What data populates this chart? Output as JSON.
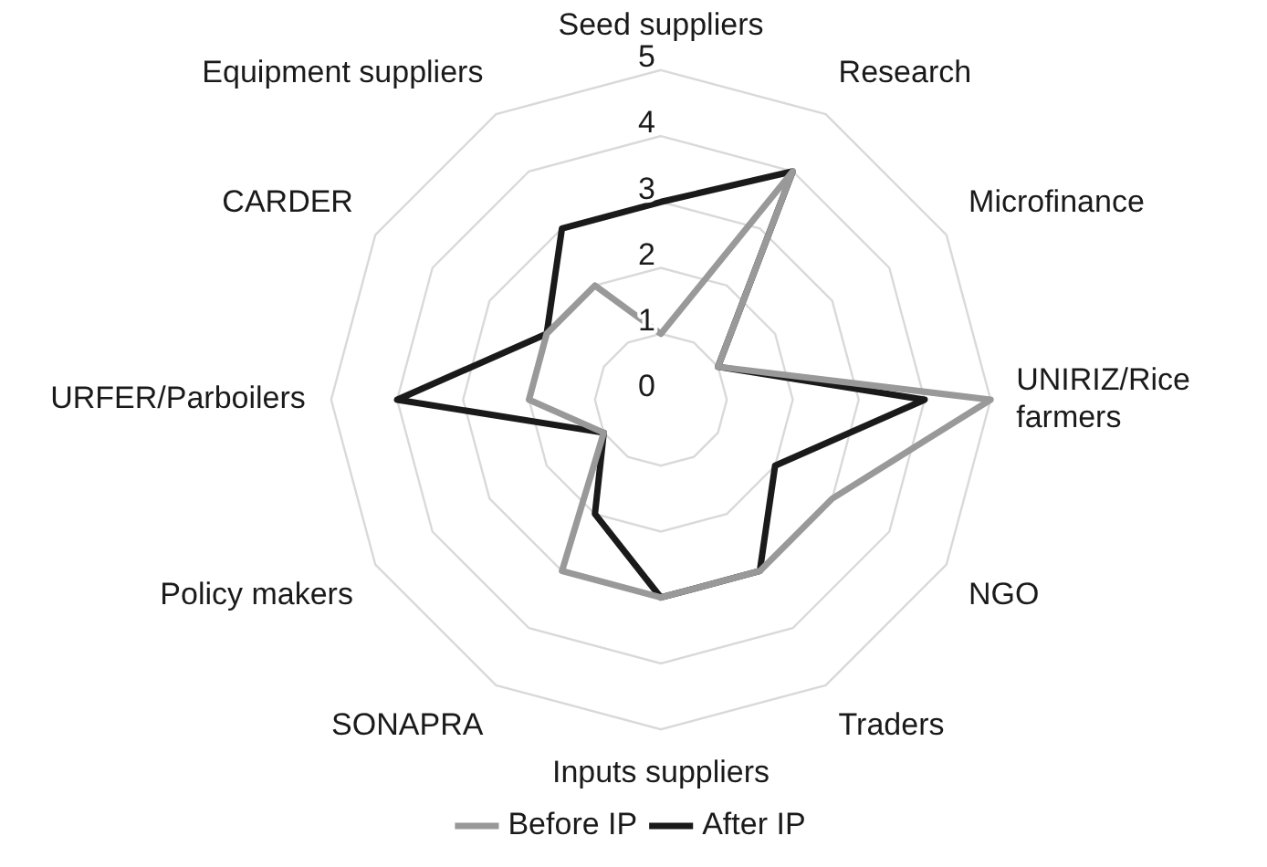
{
  "chart_data": {
    "type": "radar",
    "categories": [
      "Seed suppliers",
      "Research",
      "Microfinance",
      "UNIRIZ/Rice farmers",
      "NGO",
      "Traders",
      "Inputs suppliers",
      "SONAPRA",
      "Policy makers",
      "URFER/Parboilers",
      "CARDER",
      "Equipment suppliers"
    ],
    "series": [
      {
        "name": "Before IP",
        "color": "#999999",
        "values": [
          1,
          4,
          1,
          5,
          3,
          3,
          3,
          3,
          1,
          2,
          2,
          2
        ]
      },
      {
        "name": "After IP",
        "color": "#1a1a1a",
        "values": [
          3,
          4,
          1,
          4,
          2,
          3,
          3,
          2,
          1,
          4,
          2,
          3
        ]
      }
    ],
    "ylim": [
      0,
      5
    ],
    "yticks": [
      0,
      1,
      2,
      3,
      4,
      5
    ],
    "grid": true,
    "legend": "bottom",
    "marker": "none",
    "line_style": "solid"
  }
}
